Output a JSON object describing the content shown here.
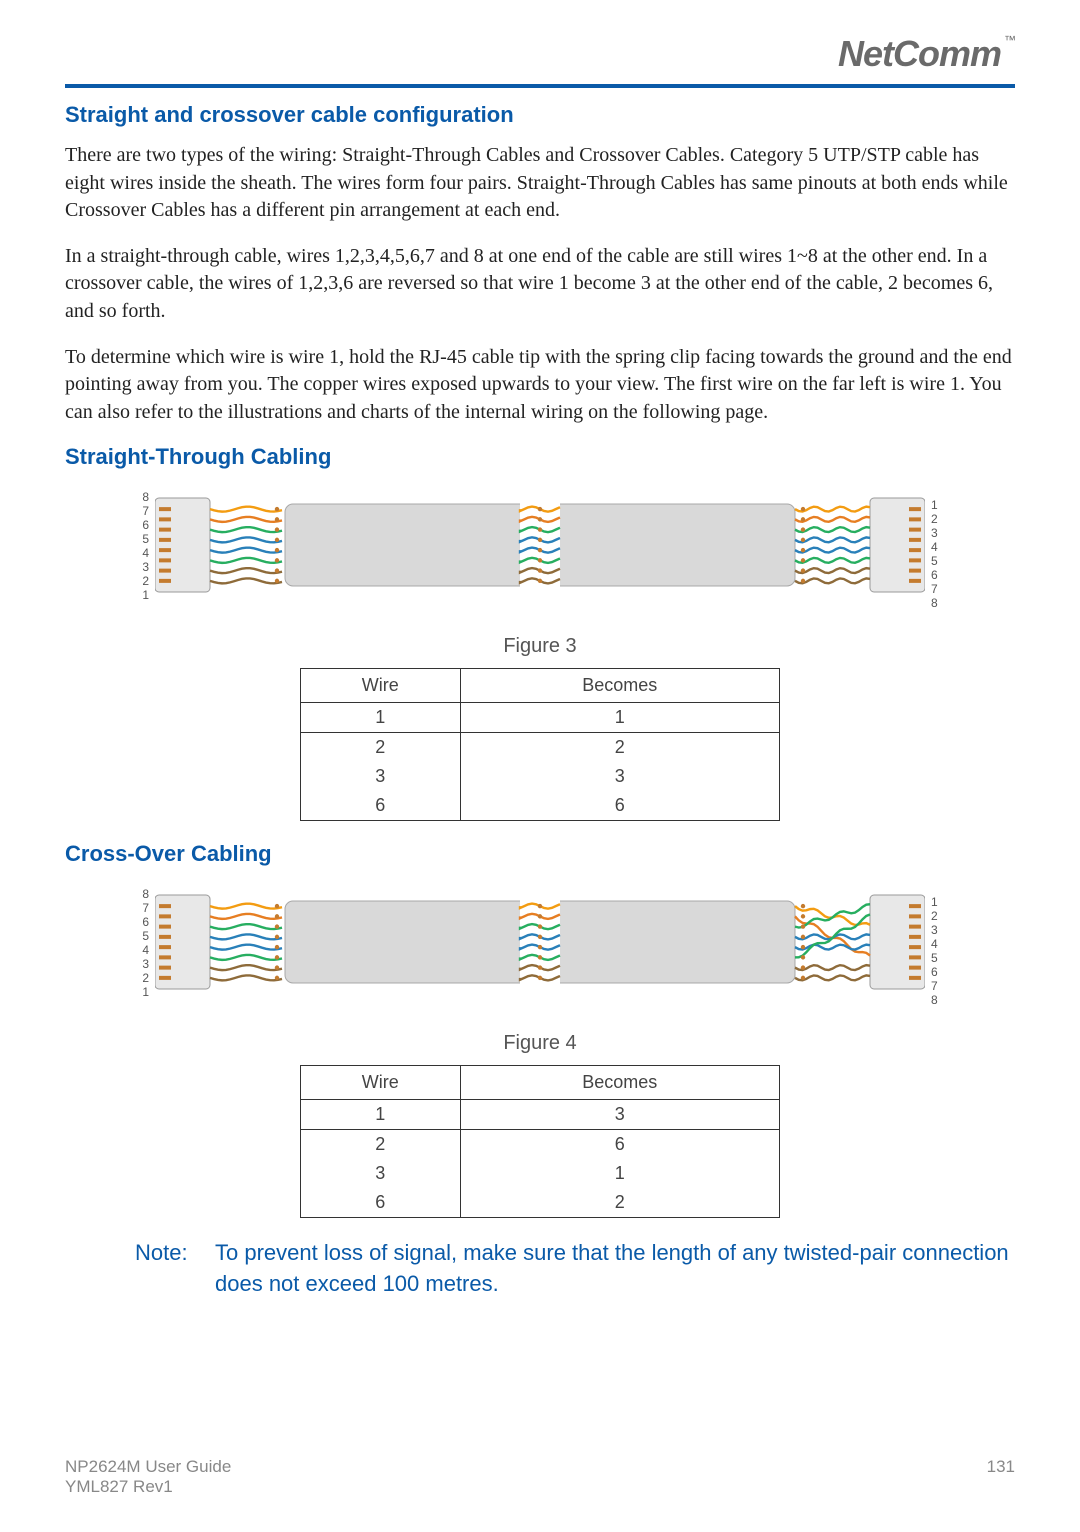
{
  "brand": {
    "logo_text": "NetComm"
  },
  "header_rule_color": "#0a5aa8",
  "section1": {
    "title": "Straight and crossover cable configuration",
    "p1": "There are two types of the wiring: Straight-Through Cables and Crossover Cables. Category 5 UTP/STP cable has eight wires inside the sheath. The wires form four pairs. Straight-Through Cables has same pinouts at both ends while Crossover Cables has a different pin arrangement at each end.",
    "p2": "In a straight-through cable, wires 1,2,3,4,5,6,7 and 8 at one end of the cable are still wires 1~8 at the other end. In a crossover cable, the wires of 1,2,3,6 are reversed so that wire 1 become 3 at the other end of the cable, 2 becomes 6, and so forth.",
    "p3": "To determine which wire is wire 1, hold the RJ-45 cable tip with the spring clip facing towards the ground and the end pointing away from you. The copper wires exposed upwards to your view. The first wire on the far left is wire 1. You can also refer to the illustrations and charts of the internal wiring on the following page."
  },
  "straight": {
    "title": "Straight-Through Cabling",
    "fig_caption": "Figure 3",
    "table": {
      "columns": [
        "Wire",
        "Becomes"
      ],
      "rows": [
        [
          "1",
          "1"
        ],
        [
          "2",
          "2"
        ],
        [
          "3",
          "3"
        ],
        [
          "6",
          "6"
        ]
      ]
    }
  },
  "crossover": {
    "title": "Cross-Over Cabling",
    "fig_caption": "Figure 4",
    "table": {
      "columns": [
        "Wire",
        "Becomes"
      ],
      "rows": [
        [
          "1",
          "3"
        ],
        [
          "2",
          "6"
        ],
        [
          "3",
          "1"
        ],
        [
          "6",
          "2"
        ]
      ]
    }
  },
  "cable_style": {
    "left_pins": [
      "1",
      "2",
      "3",
      "4",
      "5",
      "6",
      "7",
      "8"
    ],
    "right_pins_straight": [
      "1",
      "2",
      "3",
      "4",
      "5",
      "6",
      "7",
      "8"
    ],
    "right_pins_cross": [
      "1",
      "2",
      "3",
      "4",
      "5",
      "6",
      "7",
      "8"
    ],
    "wire_colors": [
      "#f39c12",
      "#e67e22",
      "#27ae60",
      "#2980b9",
      "#2980b9",
      "#27ae60",
      "#8e6b3a",
      "#8e6b3a"
    ],
    "sheath_color": "#d9d9d9",
    "sheath_border": "#a8a8a8",
    "connector_fill": "#e8e8e8",
    "connector_stroke": "#9a9a9a",
    "copper_color": "#c47b2e",
    "background": "#ffffff"
  },
  "note": {
    "label": "Note:",
    "text": "To prevent loss of signal, make sure that the length of any twisted-pair connection does not exceed 100 metres."
  },
  "footer": {
    "guide": "NP2624M User Guide",
    "ref": "YML827 Rev1",
    "page": "131"
  }
}
